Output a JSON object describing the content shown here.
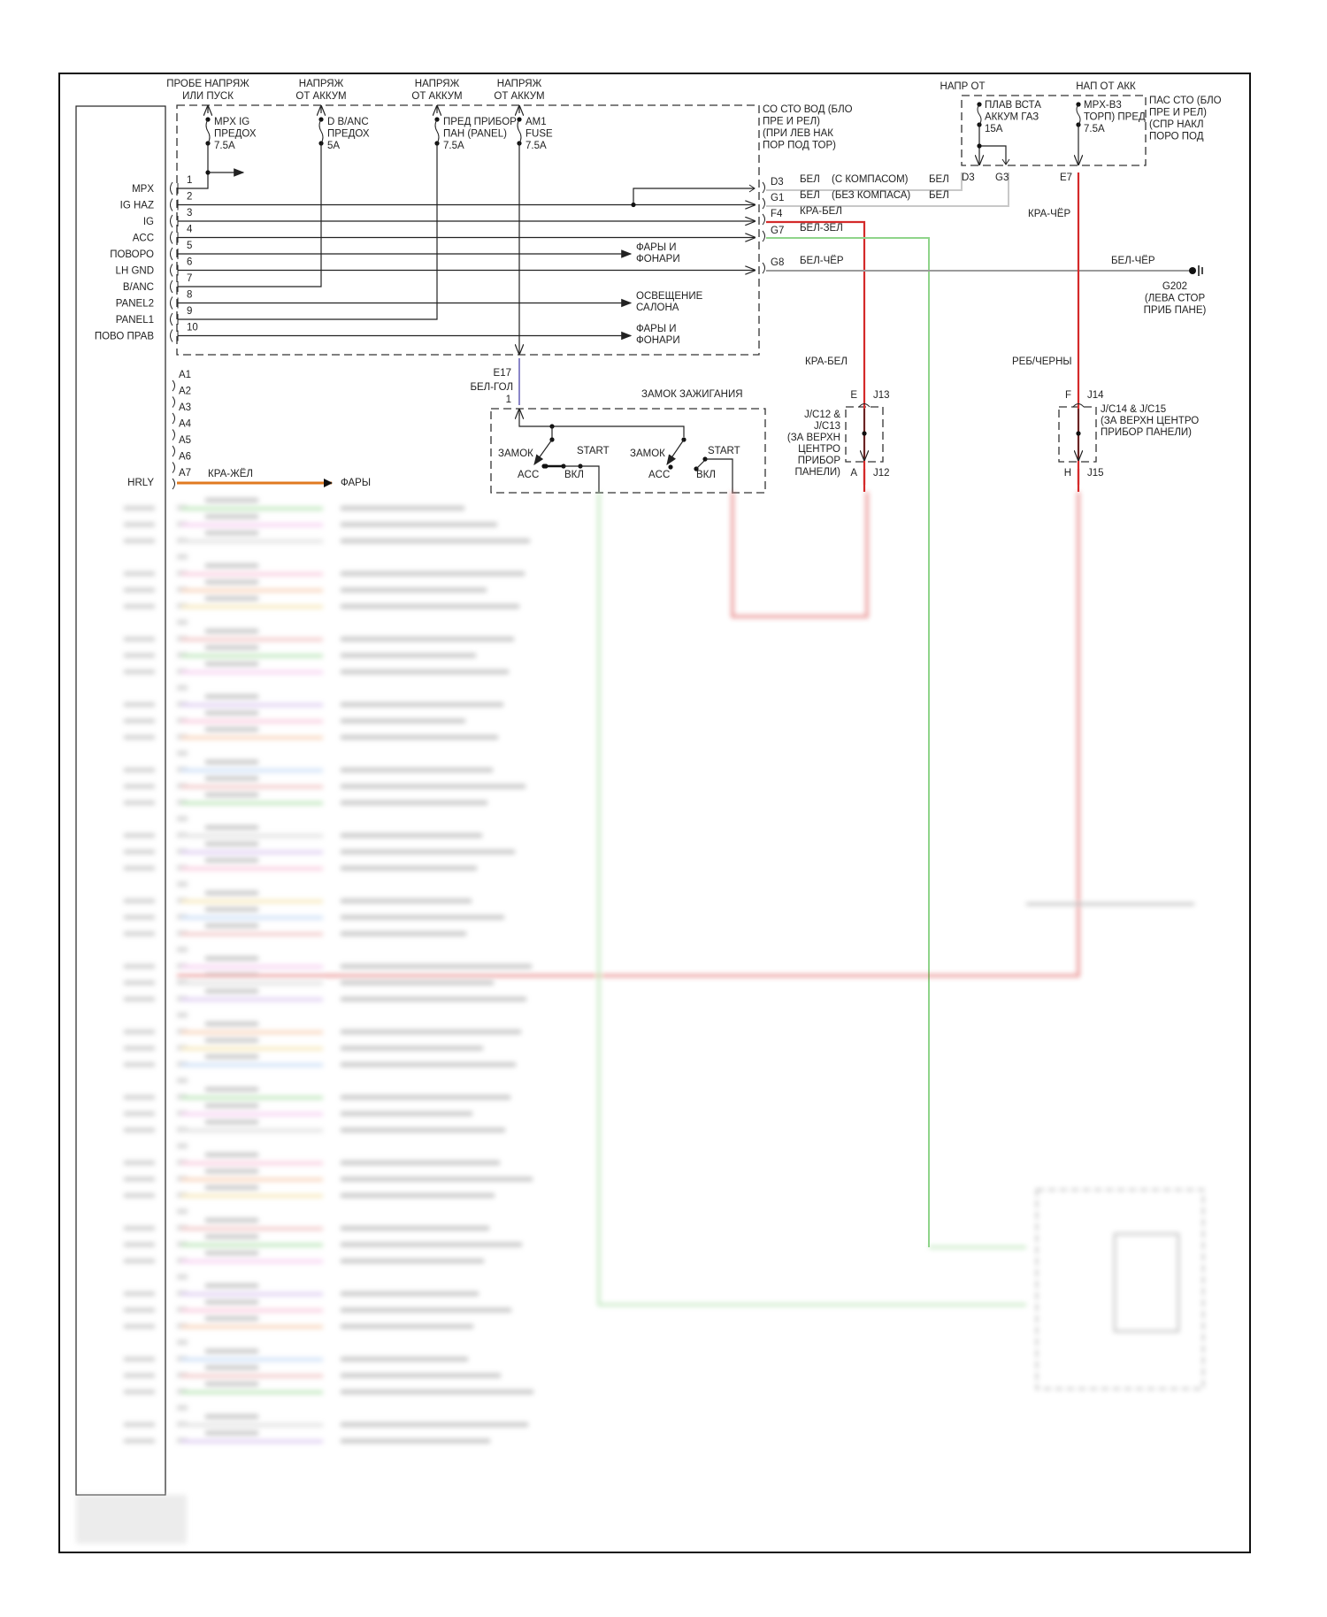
{
  "colors": {
    "red": "#d42a2a",
    "green": "#8fd48a",
    "gray": "#9a9a9a",
    "lightgray": "#c8c8c8",
    "orange": "#e07a20",
    "frame": "#111111"
  },
  "left_fusebox": {
    "supply": [
      [
        "ПРОБЕ НАПРЯЖ",
        "ИЛИ ПУСК"
      ],
      [
        "НАПРЯЖ",
        "ОТ АККУМ"
      ],
      [
        "НАПРЯЖ",
        "ОТ АККУМ"
      ],
      [
        "НАПРЯЖ",
        "ОТ АККУМ"
      ]
    ],
    "fuses": [
      [
        "MPX IG",
        "ПРЕДОХ",
        "7.5A"
      ],
      [
        "D B/ANC",
        "ПРЕДОХ",
        "5A"
      ],
      [
        "ПРЕД ПРИБОР",
        "ПАН (PANEL)",
        "7.5A"
      ],
      [
        "AM1",
        "FUSE",
        "7.5A"
      ]
    ],
    "location": [
      "СО СТО ВОД (БЛО",
      "ПРЕ И РЕЛ)",
      "(ПРИ ЛЕВ НАК",
      "ПОР ПОД ТОР)"
    ],
    "outputs": [
      [
        "ФАРЫ И",
        "ФОНАРИ"
      ],
      [
        "ОСВЕЩЕНИЕ",
        "САЛОНА"
      ],
      [
        "ФАРЫ И",
        "ФОНАРИ"
      ]
    ],
    "connector_pins": [
      "D3",
      "G1",
      "F4",
      "G7",
      "G8"
    ]
  },
  "module": {
    "pins": [
      {
        "label": "MPX",
        "num": "1"
      },
      {
        "label": "IG HAZ",
        "num": "2"
      },
      {
        "label": "IG",
        "num": "3"
      },
      {
        "label": "ACC",
        "num": "4"
      },
      {
        "label": "ПОВОРО",
        "num": "5"
      },
      {
        "label": "LH GND",
        "num": "6"
      },
      {
        "label": "B/ANC",
        "num": "7"
      },
      {
        "label": "PANEL2",
        "num": "8"
      },
      {
        "label": "PANEL1",
        "num": "9"
      },
      {
        "label": "ПОВО ПРАВ",
        "num": "10"
      }
    ],
    "a_pins": [
      "A1",
      "A2",
      "A3",
      "A4",
      "A5",
      "A6",
      "A7"
    ],
    "hrly": {
      "label": "HRLY",
      "wire": "КРА-ЖЁЛ",
      "dest": "ФАРЫ"
    }
  },
  "wires": {
    "d3": [
      "БЕЛ",
      "(С КОМПАСОМ)",
      "БЕЛ"
    ],
    "g1": [
      "БЕЛ",
      "(БЕЗ КОМПАСА)",
      "БЕЛ"
    ],
    "f4": "КРА-БЕЛ",
    "g7": "БЕЛ-ЗЕЛ",
    "g8": [
      "БЕЛ-ЧЁР",
      "БЕЛ-ЧЁР"
    ],
    "e7": "КРА-ЧЁР",
    "kra_bel": "КРА-БЕЛ",
    "reb_cherny": "РЕБ/ЧЕРНЫ"
  },
  "right_fusebox": {
    "supply": [
      "НАПР ОТ",
      "НАП ОТ АКК"
    ],
    "fuses": [
      [
        "ПЛАВ ВСТА",
        "АККУМ ГАЗ",
        "15А"
      ],
      [
        "MPX-B3",
        "ТОРП) ПРЕД",
        "7.5A"
      ]
    ],
    "location": [
      "ПАС СТО (БЛО",
      "ПРЕ И РЕЛ)",
      "(СПР НАКЛ",
      "ПОРО ПОД"
    ],
    "pins": [
      "D3",
      "G3",
      "E7"
    ]
  },
  "ground": [
    "G202",
    "(ЛЕВА СТОР",
    "ПРИБ ПАНЕ)"
  ],
  "junctions": {
    "jc12": {
      "top_pin": "E",
      "top_conn": "J13",
      "bottom_pin": "A",
      "bottom_conn": "J12",
      "desc": [
        "J/C12 &",
        "J/C13",
        "(ЗА ВЕРХН",
        "ЦЕНТРО",
        "ПРИБОР",
        "ПАНЕЛИ)"
      ]
    },
    "jc14": {
      "top_pin": "F",
      "top_conn": "J14",
      "bottom_pin": "H",
      "bottom_conn": "J15",
      "desc": [
        "J/C14 & J/C15",
        "(ЗА ВЕРХН ЦЕНТРО",
        "ПРИБОР ПАНЕЛИ)"
      ]
    }
  },
  "ignition": {
    "title": "ЗАМОК ЗАЖИГАНИЯ",
    "conn": "E17",
    "wire": "БЕЛ-ГОЛ",
    "pin": "1",
    "positions": [
      "ЗАМОК",
      "START",
      "ACC",
      "ВКЛ",
      "ЗАМОК",
      "START",
      "ACC",
      "ВКЛ"
    ]
  }
}
